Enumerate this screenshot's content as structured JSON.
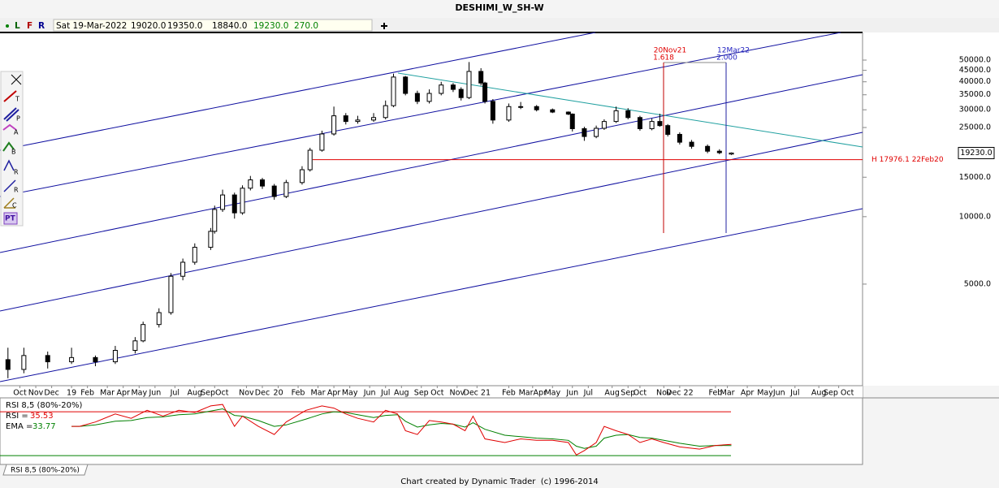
{
  "window": {
    "toolbar": {
      "letters": [
        "L",
        "F",
        "R"
      ],
      "date": "Sat 19-Mar-2022",
      "values": [
        "19020.0",
        "19350.0",
        "18840.0",
        "19230.0",
        "270.0"
      ]
    },
    "tools": [
      "T",
      "P",
      "A",
      "B",
      "R",
      "R",
      "C",
      "PT"
    ],
    "footer": "Chart created by Dynamic Trader  (c) 1996-2014"
  },
  "chart_data": [
    {
      "type": "candlestick",
      "title": "DESHIMI_W_SH-W",
      "log": true,
      "x": [
        2,
        6,
        12,
        18,
        24,
        29,
        34,
        36,
        40,
        43,
        46,
        49,
        53,
        54,
        56,
        59,
        61,
        63,
        66,
        69,
        72,
        76,
        78,
        81,
        84,
        87,
        90,
        94,
        97,
        99,
        102,
        105,
        108,
        111,
        114,
        116,
        118,
        121,
        122,
        124,
        128,
        131,
        135,
        139,
        143,
        144,
        147,
        150,
        152,
        155,
        158,
        161,
        164,
        166,
        168,
        171,
        174,
        178,
        181,
        184
      ],
      "open": [
        2300,
        2080,
        2400,
        2250,
        2350,
        2250,
        2530,
        2790,
        3300,
        3730,
        5420,
        6260,
        7300,
        8600,
        10770,
        12500,
        10400,
        13400,
        14600,
        13700,
        12300,
        14200,
        16200,
        19800,
        23400,
        28200,
        26600,
        27000,
        27700,
        31300,
        42000,
        35500,
        32700,
        35500,
        38700,
        37000,
        34000,
        44500,
        39500,
        32700,
        27000,
        31000,
        31000,
        30000,
        29300,
        28700,
        24700,
        22800,
        24800,
        26600,
        29700,
        27700,
        24700,
        26600,
        25500,
        23300,
        21500,
        20600,
        19600,
        19020
      ],
      "high": [
        2600,
        2600,
        2500,
        2600,
        2400,
        2650,
        2900,
        3400,
        3900,
        5600,
        6500,
        7600,
        8900,
        11200,
        13200,
        12800,
        13800,
        15200,
        14900,
        14000,
        14600,
        16800,
        20300,
        24200,
        31000,
        29000,
        28200,
        29000,
        33000,
        43500,
        42500,
        36500,
        37000,
        40000,
        39500,
        37800,
        49000,
        46000,
        40000,
        33500,
        32000,
        32500,
        31500,
        30400,
        29500,
        28900,
        25200,
        25500,
        27200,
        31000,
        30500,
        28200,
        27400,
        28800,
        25900,
        23800,
        22000,
        21000,
        20000,
        19350
      ],
      "low": [
        1900,
        2000,
        2100,
        2200,
        2150,
        2200,
        2450,
        2750,
        3200,
        3650,
        5200,
        6100,
        7100,
        8400,
        10500,
        9800,
        10200,
        13100,
        13300,
        11900,
        12100,
        13900,
        15900,
        19500,
        23000,
        25800,
        26000,
        26500,
        27200,
        30800,
        34800,
        31800,
        32000,
        34800,
        36000,
        33000,
        33500,
        38500,
        32000,
        26000,
        26500,
        30200,
        29500,
        29000,
        28400,
        24000,
        21800,
        22400,
        24400,
        26200,
        27200,
        24200,
        24300,
        25200,
        22800,
        21000,
        20100,
        19200,
        19000,
        18840
      ],
      "close": [
        2080,
        2400,
        2250,
        2350,
        2250,
        2530,
        2790,
        3300,
        3730,
        5420,
        6260,
        7300,
        8600,
        10770,
        12500,
        10400,
        13400,
        14600,
        13700,
        12300,
        14200,
        16200,
        19800,
        23400,
        28200,
        26600,
        27000,
        27700,
        31300,
        42000,
        35500,
        32700,
        35500,
        38700,
        37000,
        34000,
        44500,
        39500,
        32700,
        27000,
        31000,
        31000,
        30000,
        29300,
        28700,
        24700,
        22800,
        24800,
        26600,
        29700,
        27700,
        24700,
        26600,
        25500,
        23300,
        21500,
        20600,
        19600,
        19300,
        19230
      ],
      "xlim": [
        0,
        217
      ],
      "ylim": [
        1760,
        66400
      ],
      "yticks": [
        {
          "value": 50000,
          "label": "50000.0"
        },
        {
          "value": 45000,
          "label": "45000.0"
        },
        {
          "value": 40000,
          "label": "40000.0"
        },
        {
          "value": 35000,
          "label": "35000.0"
        },
        {
          "value": 30000,
          "label": "30000.0"
        },
        {
          "value": 25000,
          "label": "25000.0"
        },
        {
          "value": 15000,
          "label": "15000.0"
        },
        {
          "value": 10000,
          "label": "10000.0"
        },
        {
          "value": 5000,
          "label": "5000.0"
        }
      ],
      "xticks": [
        {
          "value": 5,
          "label": "Oct"
        },
        {
          "value": 9,
          "label": "Nov"
        },
        {
          "value": 13,
          "label": "Dec"
        },
        {
          "value": 18,
          "label": "19"
        },
        {
          "value": 22,
          "label": "Feb"
        },
        {
          "value": 27,
          "label": "Mar"
        },
        {
          "value": 31,
          "label": "Apr"
        },
        {
          "value": 35,
          "label": "May"
        },
        {
          "value": 39,
          "label": "Jun"
        },
        {
          "value": 44,
          "label": "Jul"
        },
        {
          "value": 49,
          "label": "Aug"
        },
        {
          "value": 54,
          "label": "SepOct"
        },
        {
          "value": 62,
          "label": "Nov"
        },
        {
          "value": 66,
          "label": "Dec"
        },
        {
          "value": 70,
          "label": "20"
        },
        {
          "value": 75,
          "label": "Feb"
        },
        {
          "value": 80,
          "label": "Mar"
        },
        {
          "value": 84,
          "label": "Apr"
        },
        {
          "value": 88,
          "label": "May"
        },
        {
          "value": 93,
          "label": "Jun"
        },
        {
          "value": 97,
          "label": "Jul"
        },
        {
          "value": 101,
          "label": "Aug"
        },
        {
          "value": 106,
          "label": "Sep"
        },
        {
          "value": 110,
          "label": "Oct"
        },
        {
          "value": 115,
          "label": "Nov"
        },
        {
          "value": 120,
          "label": "Dec 21"
        },
        {
          "value": 128,
          "label": "Feb"
        },
        {
          "value": 134,
          "label": "MarApr"
        },
        {
          "value": 139,
          "label": "May"
        },
        {
          "value": 144,
          "label": "Jun"
        },
        {
          "value": 148,
          "label": "Jul"
        },
        {
          "value": 154,
          "label": "Aug"
        },
        {
          "value": 158,
          "label": "Sep"
        },
        {
          "value": 161,
          "label": "Oct"
        },
        {
          "value": 167,
          "label": "Nov"
        },
        {
          "value": 171,
          "label": "Dec 22"
        },
        {
          "value": 180,
          "label": "Feb"
        },
        {
          "value": 183,
          "label": "Mar"
        },
        {
          "value": 188,
          "label": "Apr"
        },
        {
          "value": 194,
          "label": "MayJun"
        },
        {
          "value": 200,
          "label": "Jul"
        },
        {
          "value": 206,
          "label": "Aug"
        },
        {
          "value": 211,
          "label": "Sep Oct"
        }
      ],
      "last_price": {
        "value": 19230,
        "label": "19230.0"
      },
      "hline": {
        "value": 17976.1,
        "label": "H 17976.1 22Feb20",
        "color": "#e00000"
      },
      "annotations": [
        {
          "date": "20Nov21",
          "ratio": "1.618",
          "color": "#e00000"
        },
        {
          "date": "12Mar22",
          "ratio": "2.000",
          "color": "#2020c0"
        }
      ]
    },
    {
      "type": "line",
      "title": "RSI 8,5 (80%-20%)",
      "x": [
        18,
        20,
        24,
        29,
        33,
        37,
        41,
        45,
        49,
        53,
        56,
        59,
        61,
        65,
        69,
        72,
        77,
        81,
        84,
        87,
        90,
        94,
        97,
        100,
        102,
        105,
        108,
        111,
        114,
        117,
        119,
        122,
        127,
        131,
        135,
        139,
        143,
        145,
        147,
        150,
        152,
        155,
        158,
        161,
        164,
        167,
        171,
        176,
        180,
        184
      ],
      "series": [
        {
          "name": "RSI =",
          "legend_value": "35.53",
          "color": "#e00000",
          "values": [
            60,
            60,
            66,
            77,
            71,
            82,
            74,
            82,
            79,
            88,
            90,
            60,
            74,
            60,
            49,
            66,
            82,
            88,
            85,
            77,
            71,
            66,
            82,
            77,
            54,
            49,
            68,
            66,
            63,
            54,
            74,
            43,
            38,
            43,
            41,
            41,
            38,
            21,
            27,
            38,
            60,
            54,
            49,
            38,
            43,
            38,
            32,
            29,
            34,
            35.53
          ]
        },
        {
          "name": "EMA =",
          "legend_value": "33.77",
          "color": "#008000",
          "values": [
            60,
            60,
            62,
            67,
            68,
            72,
            73,
            76,
            77,
            81,
            84,
            75,
            74,
            68,
            60,
            62,
            70,
            77,
            80,
            79,
            76,
            72,
            75,
            76,
            67,
            59,
            62,
            64,
            63,
            59,
            65,
            56,
            48,
            46,
            44,
            43,
            41,
            33,
            30,
            33,
            44,
            48,
            49,
            45,
            44,
            41,
            37,
            33,
            34,
            33.77
          ]
        }
      ],
      "xlim": [
        0,
        217
      ],
      "ylim": [
        8,
        99
      ],
      "levels": [
        {
          "value": 80,
          "color": "#e00000"
        },
        {
          "value": 20,
          "color": "#008000"
        }
      ]
    }
  ]
}
